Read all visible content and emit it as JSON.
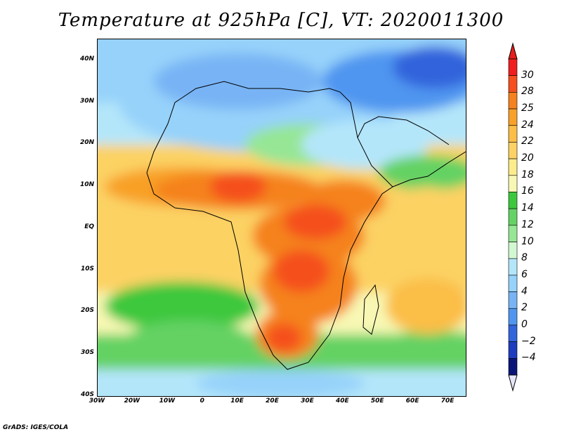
{
  "title": "Temperature at 925hPa [C], VT: 2020011300",
  "credit": "GrADS: IGES/COLA",
  "map": {
    "projection": "latlon",
    "lon_range": [
      -30,
      75
    ],
    "lat_range": [
      -40,
      45
    ],
    "lat_ticks": [
      {
        "value": 40,
        "label": "40N"
      },
      {
        "value": 30,
        "label": "30N"
      },
      {
        "value": 20,
        "label": "20N"
      },
      {
        "value": 10,
        "label": "10N"
      },
      {
        "value": 0,
        "label": "EQ"
      },
      {
        "value": -10,
        "label": "10S"
      },
      {
        "value": -20,
        "label": "20S"
      },
      {
        "value": -30,
        "label": "30S"
      },
      {
        "value": -40,
        "label": "40S"
      }
    ],
    "lon_ticks": [
      {
        "value": -30,
        "label": "30W"
      },
      {
        "value": -20,
        "label": "20W"
      },
      {
        "value": -10,
        "label": "10W"
      },
      {
        "value": 0,
        "label": "0"
      },
      {
        "value": 10,
        "label": "10E"
      },
      {
        "value": 20,
        "label": "20E"
      },
      {
        "value": 30,
        "label": "30E"
      },
      {
        "value": 40,
        "label": "40E"
      },
      {
        "value": 50,
        "label": "50E"
      },
      {
        "value": 60,
        "label": "60E"
      },
      {
        "value": 70,
        "label": "70E"
      }
    ]
  },
  "colorbar": {
    "levels": [
      "30",
      "28",
      "25",
      "24",
      "22",
      "20",
      "18",
      "16",
      "14",
      "12",
      "10",
      "8",
      "6",
      "4",
      "2",
      "0",
      "−2",
      "−4"
    ],
    "colors_top_to_bottom": [
      "#f01e1e",
      "#f5501e",
      "#f5821e",
      "#f8a028",
      "#fbbe46",
      "#fcd264",
      "#fcec8c",
      "#f8f8b4",
      "#3cc83c",
      "#64d264",
      "#96e696",
      "#d2f8d2",
      "#b4e6fa",
      "#96d2fa",
      "#78b4f5",
      "#5096f0",
      "#3264dc",
      "#1e3cbe",
      "#0a1478"
    ],
    "top_cap_color": "#e61e1e",
    "bottom_cap_color": "#e6e6fa"
  }
}
